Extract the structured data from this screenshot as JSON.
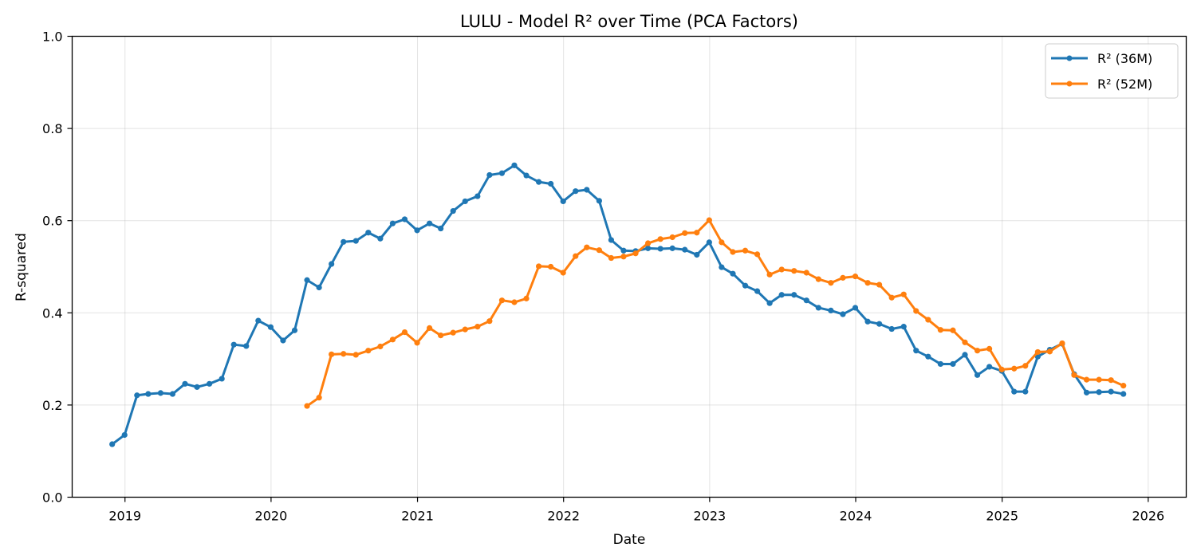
{
  "chart_data": {
    "type": "line",
    "title": "LULU - Model R² over Time (PCA Factors)",
    "xlabel": "Date",
    "ylabel": "R-squared",
    "ylim": [
      0,
      1.0
    ],
    "xlim": [
      "2018-08-22",
      "2026-04-06"
    ],
    "grid": true,
    "legend_position": "top-right",
    "x_ticks": [
      "2019",
      "2020",
      "2021",
      "2022",
      "2023",
      "2024",
      "2025",
      "2026"
    ],
    "y_ticks": [
      "0.0",
      "0.2",
      "0.4",
      "0.6",
      "0.8",
      "1.0"
    ],
    "series": [
      {
        "name": "R² (36M)",
        "color": "#1f77b4",
        "points": [
          [
            "2018-11-30",
            0.115
          ],
          [
            "2018-12-31",
            0.135
          ],
          [
            "2019-01-31",
            0.221
          ],
          [
            "2019-02-28",
            0.224
          ],
          [
            "2019-03-31",
            0.226
          ],
          [
            "2019-04-30",
            0.224
          ],
          [
            "2019-05-31",
            0.246
          ],
          [
            "2019-06-30",
            0.239
          ],
          [
            "2019-07-31",
            0.246
          ],
          [
            "2019-08-31",
            0.257
          ],
          [
            "2019-09-30",
            0.331
          ],
          [
            "2019-10-31",
            0.328
          ],
          [
            "2019-11-30",
            0.383
          ],
          [
            "2019-12-31",
            0.369
          ],
          [
            "2020-01-31",
            0.34
          ],
          [
            "2020-02-29",
            0.362
          ],
          [
            "2020-03-31",
            0.471
          ],
          [
            "2020-04-30",
            0.455
          ],
          [
            "2020-05-31",
            0.506
          ],
          [
            "2020-06-30",
            0.554
          ],
          [
            "2020-07-31",
            0.556
          ],
          [
            "2020-08-31",
            0.574
          ],
          [
            "2020-09-30",
            0.561
          ],
          [
            "2020-10-31",
            0.594
          ],
          [
            "2020-11-30",
            0.603
          ],
          [
            "2020-12-31",
            0.579
          ],
          [
            "2021-01-31",
            0.594
          ],
          [
            "2021-02-28",
            0.583
          ],
          [
            "2021-03-31",
            0.621
          ],
          [
            "2021-04-30",
            0.642
          ],
          [
            "2021-05-31",
            0.653
          ],
          [
            "2021-06-30",
            0.699
          ],
          [
            "2021-07-31",
            0.703
          ],
          [
            "2021-08-31",
            0.72
          ],
          [
            "2021-09-30",
            0.698
          ],
          [
            "2021-10-31",
            0.684
          ],
          [
            "2021-11-30",
            0.68
          ],
          [
            "2021-12-31",
            0.642
          ],
          [
            "2022-01-31",
            0.664
          ],
          [
            "2022-02-28",
            0.667
          ],
          [
            "2022-03-31",
            0.643
          ],
          [
            "2022-04-30",
            0.558
          ],
          [
            "2022-05-31",
            0.535
          ],
          [
            "2022-06-30",
            0.534
          ],
          [
            "2022-07-31",
            0.54
          ],
          [
            "2022-08-31",
            0.539
          ],
          [
            "2022-09-30",
            0.54
          ],
          [
            "2022-10-31",
            0.537
          ],
          [
            "2022-11-30",
            0.526
          ],
          [
            "2022-12-31",
            0.553
          ],
          [
            "2023-01-31",
            0.499
          ],
          [
            "2023-02-28",
            0.485
          ],
          [
            "2023-03-31",
            0.459
          ],
          [
            "2023-04-30",
            0.447
          ],
          [
            "2023-05-31",
            0.421
          ],
          [
            "2023-06-30",
            0.439
          ],
          [
            "2023-07-31",
            0.439
          ],
          [
            "2023-08-31",
            0.427
          ],
          [
            "2023-09-30",
            0.411
          ],
          [
            "2023-10-31",
            0.405
          ],
          [
            "2023-11-30",
            0.397
          ],
          [
            "2023-12-31",
            0.411
          ],
          [
            "2024-01-31",
            0.381
          ],
          [
            "2024-02-29",
            0.376
          ],
          [
            "2024-03-31",
            0.365
          ],
          [
            "2024-04-30",
            0.37
          ],
          [
            "2024-05-31",
            0.318
          ],
          [
            "2024-06-30",
            0.305
          ],
          [
            "2024-07-31",
            0.289
          ],
          [
            "2024-08-31",
            0.289
          ],
          [
            "2024-09-30",
            0.309
          ],
          [
            "2024-10-31",
            0.265
          ],
          [
            "2024-11-30",
            0.283
          ],
          [
            "2024-12-31",
            0.274
          ],
          [
            "2025-01-31",
            0.229
          ],
          [
            "2025-02-28",
            0.229
          ],
          [
            "2025-03-31",
            0.305
          ],
          [
            "2025-04-30",
            0.32
          ],
          [
            "2025-05-31",
            0.333
          ],
          [
            "2025-06-30",
            0.267
          ],
          [
            "2025-07-31",
            0.227
          ],
          [
            "2025-08-31",
            0.228
          ],
          [
            "2025-09-30",
            0.229
          ],
          [
            "2025-10-31",
            0.224
          ]
        ]
      },
      {
        "name": "R² (52M)",
        "color": "#ff7f0e",
        "points": [
          [
            "2020-03-31",
            0.198
          ],
          [
            "2020-04-30",
            0.216
          ],
          [
            "2020-05-31",
            0.31
          ],
          [
            "2020-06-30",
            0.311
          ],
          [
            "2020-07-31",
            0.309
          ],
          [
            "2020-08-31",
            0.318
          ],
          [
            "2020-09-30",
            0.327
          ],
          [
            "2020-10-31",
            0.342
          ],
          [
            "2020-11-30",
            0.358
          ],
          [
            "2020-12-31",
            0.335
          ],
          [
            "2021-01-31",
            0.367
          ],
          [
            "2021-02-28",
            0.351
          ],
          [
            "2021-03-31",
            0.357
          ],
          [
            "2021-04-30",
            0.364
          ],
          [
            "2021-05-31",
            0.37
          ],
          [
            "2021-06-30",
            0.382
          ],
          [
            "2021-07-31",
            0.427
          ],
          [
            "2021-08-31",
            0.423
          ],
          [
            "2021-09-30",
            0.431
          ],
          [
            "2021-10-31",
            0.501
          ],
          [
            "2021-11-30",
            0.5
          ],
          [
            "2021-12-31",
            0.487
          ],
          [
            "2022-01-31",
            0.523
          ],
          [
            "2022-02-28",
            0.542
          ],
          [
            "2022-03-31",
            0.536
          ],
          [
            "2022-04-30",
            0.519
          ],
          [
            "2022-05-31",
            0.522
          ],
          [
            "2022-06-30",
            0.529
          ],
          [
            "2022-07-31",
            0.551
          ],
          [
            "2022-08-31",
            0.56
          ],
          [
            "2022-09-30",
            0.564
          ],
          [
            "2022-10-31",
            0.573
          ],
          [
            "2022-11-30",
            0.574
          ],
          [
            "2022-12-31",
            0.601
          ],
          [
            "2023-01-31",
            0.553
          ],
          [
            "2023-02-28",
            0.532
          ],
          [
            "2023-03-31",
            0.535
          ],
          [
            "2023-04-30",
            0.527
          ],
          [
            "2023-05-31",
            0.483
          ],
          [
            "2023-06-30",
            0.494
          ],
          [
            "2023-07-31",
            0.491
          ],
          [
            "2023-08-31",
            0.487
          ],
          [
            "2023-09-30",
            0.473
          ],
          [
            "2023-10-31",
            0.465
          ],
          [
            "2023-11-30",
            0.476
          ],
          [
            "2023-12-31",
            0.479
          ],
          [
            "2024-01-31",
            0.465
          ],
          [
            "2024-02-29",
            0.461
          ],
          [
            "2024-03-31",
            0.433
          ],
          [
            "2024-04-30",
            0.44
          ],
          [
            "2024-05-31",
            0.404
          ],
          [
            "2024-06-30",
            0.385
          ],
          [
            "2024-07-31",
            0.363
          ],
          [
            "2024-08-31",
            0.362
          ],
          [
            "2024-09-30",
            0.336
          ],
          [
            "2024-10-31",
            0.318
          ],
          [
            "2024-11-30",
            0.322
          ],
          [
            "2024-12-31",
            0.277
          ],
          [
            "2025-01-31",
            0.279
          ],
          [
            "2025-02-28",
            0.285
          ],
          [
            "2025-03-31",
            0.315
          ],
          [
            "2025-04-30",
            0.316
          ],
          [
            "2025-05-31",
            0.334
          ],
          [
            "2025-06-30",
            0.265
          ],
          [
            "2025-07-31",
            0.255
          ],
          [
            "2025-08-31",
            0.255
          ],
          [
            "2025-09-30",
            0.254
          ],
          [
            "2025-10-31",
            0.242
          ]
        ]
      }
    ]
  }
}
